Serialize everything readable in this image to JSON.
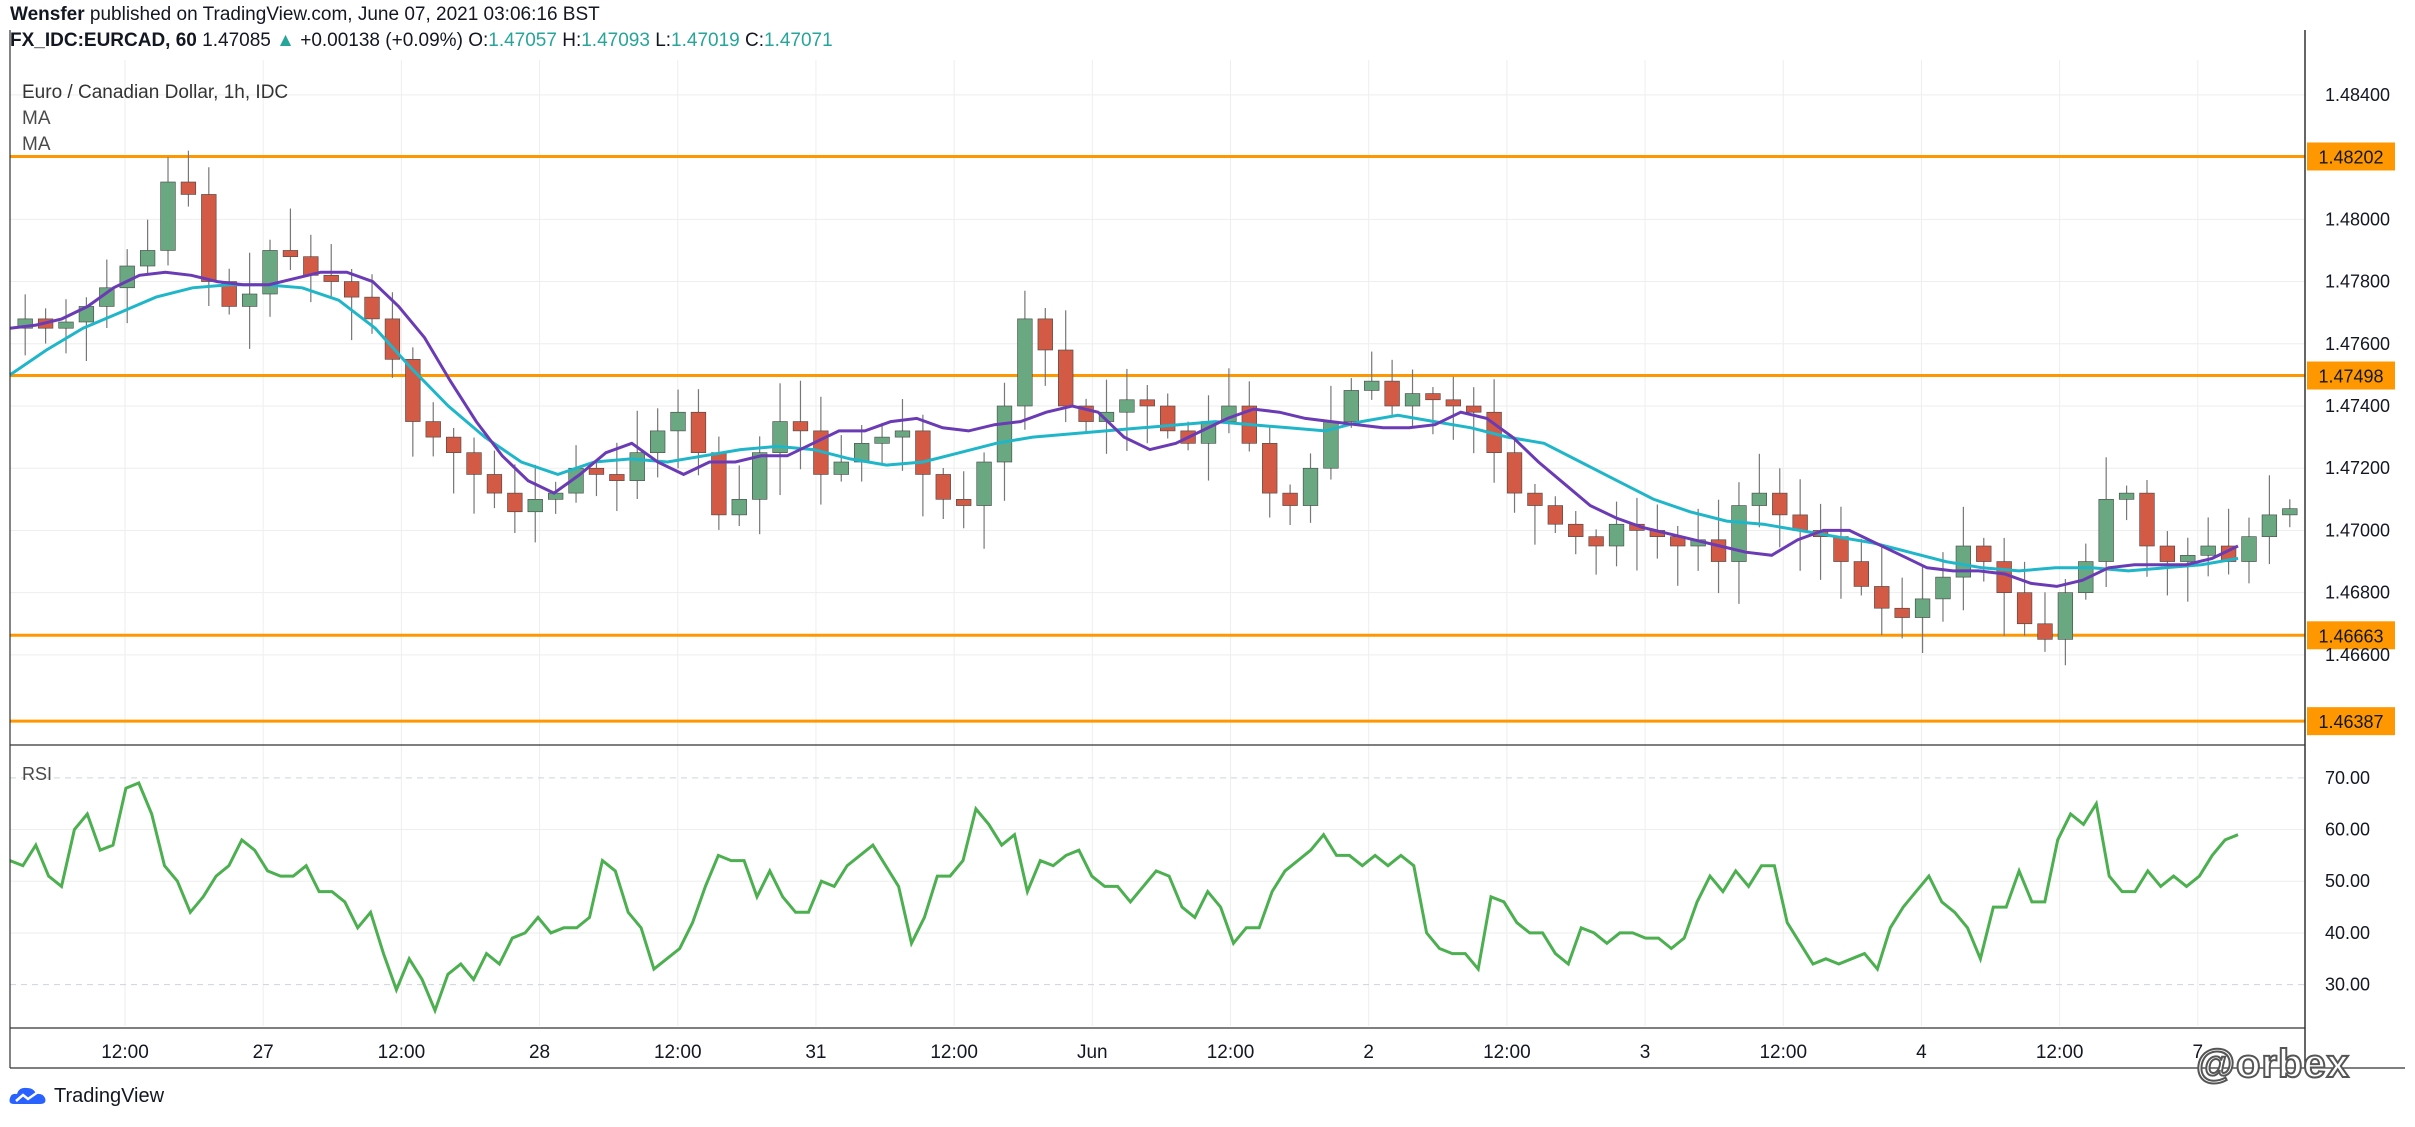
{
  "header": {
    "publisher": "Wensfer",
    "published_text": "published on TradingView.com, June 07, 2021 03:06:16 BST",
    "symbol": "FX_IDC:EURCAD, 60",
    "last": "1.47085",
    "change": "+0.00138 (+0.09%)",
    "o_label": "O:",
    "o_value": "1.47057",
    "h_label": "H:",
    "h_value": "1.47093",
    "l_label": "L:",
    "l_value": "1.47019",
    "c_label": "C:",
    "c_value": "1.47071"
  },
  "legend": {
    "title": "Euro / Canadian Dollar, 1h, IDC",
    "ma1": "MA",
    "ma2": "MA"
  },
  "rsi_label": "RSI",
  "footer": {
    "logo_text": "TradingView",
    "watermark": "@orbex"
  },
  "colors": {
    "bull": "#6aa882",
    "bear": "#d35a45",
    "ma_fast": "#6a3bb5",
    "ma_slow": "#1fb6c9",
    "level": "#ff9800",
    "rsi": "#4caf50",
    "grid": "#eeeeee"
  },
  "chart_data": [
    {
      "type": "candlestick",
      "title": "Euro / Canadian Dollar, 1h, IDC",
      "ylim": [
        1.4632,
        1.4848
      ],
      "y_ticks": [
        "1.46600",
        "1.46800",
        "1.47000",
        "1.47200",
        "1.47400",
        "1.47600",
        "1.47800",
        "1.48000",
        "1.48400"
      ],
      "x_tick_labels": [
        "12:00",
        "27",
        "12:00",
        "28",
        "12:00",
        "31",
        "12:00",
        "Jun",
        "12:00",
        "2",
        "12:00",
        "3",
        "12:00",
        "4",
        "12:00",
        "7"
      ],
      "horizontal_levels": [
        "1.48202",
        "1.47498",
        "1.46663",
        "1.46387"
      ],
      "close_path": [
        1.4768,
        1.4765,
        1.4767,
        1.4772,
        1.4778,
        1.4785,
        1.479,
        1.4812,
        1.4808,
        1.478,
        1.4772,
        1.4776,
        1.479,
        1.4788,
        1.4782,
        1.478,
        1.4775,
        1.4768,
        1.4755,
        1.4735,
        1.473,
        1.4725,
        1.4718,
        1.4712,
        1.4706,
        1.471,
        1.4712,
        1.472,
        1.4718,
        1.4716,
        1.4725,
        1.4732,
        1.4738,
        1.4725,
        1.4705,
        1.471,
        1.4725,
        1.4735,
        1.4732,
        1.4718,
        1.4722,
        1.4728,
        1.473,
        1.4732,
        1.4718,
        1.471,
        1.4708,
        1.4722,
        1.474,
        1.4768,
        1.4758,
        1.474,
        1.4735,
        1.4738,
        1.4742,
        1.474,
        1.4732,
        1.4728,
        1.4735,
        1.474,
        1.4728,
        1.4712,
        1.4708,
        1.472,
        1.4735,
        1.4745,
        1.4748,
        1.474,
        1.4744,
        1.4742,
        1.474,
        1.4738,
        1.4725,
        1.4712,
        1.4708,
        1.4702,
        1.4698,
        1.4695,
        1.4702,
        1.47,
        1.4698,
        1.4695,
        1.4697,
        1.469,
        1.4708,
        1.4712,
        1.4705,
        1.47,
        1.4698,
        1.469,
        1.4682,
        1.4675,
        1.4672,
        1.4678,
        1.4685,
        1.4695,
        1.469,
        1.468,
        1.467,
        1.4665,
        1.468,
        1.469,
        1.471,
        1.4712,
        1.4695,
        1.469,
        1.4692,
        1.4695,
        1.469,
        1.4698,
        1.4705,
        1.4707
      ],
      "ma_fast_path": [
        1.4765,
        1.4766,
        1.4768,
        1.4772,
        1.4778,
        1.4782,
        1.4783,
        1.4782,
        1.478,
        1.4779,
        1.4779,
        1.4781,
        1.4783,
        1.4783,
        1.478,
        1.4772,
        1.4762,
        1.4748,
        1.4735,
        1.4724,
        1.4716,
        1.4712,
        1.4718,
        1.4725,
        1.4728,
        1.4722,
        1.4718,
        1.4722,
        1.4722,
        1.4724,
        1.4724,
        1.4728,
        1.4732,
        1.4732,
        1.4735,
        1.4736,
        1.4733,
        1.4732,
        1.4734,
        1.4735,
        1.4738,
        1.474,
        1.4738,
        1.473,
        1.4726,
        1.4728,
        1.4732,
        1.4736,
        1.4739,
        1.4738,
        1.4736,
        1.4735,
        1.4734,
        1.4733,
        1.4733,
        1.4734,
        1.4738,
        1.4736,
        1.473,
        1.4722,
        1.4715,
        1.4708,
        1.4704,
        1.4701,
        1.4699,
        1.4697,
        1.4695,
        1.4693,
        1.4692,
        1.4697,
        1.47,
        1.47,
        1.4696,
        1.4692,
        1.4688,
        1.4687,
        1.4687,
        1.4686,
        1.4683,
        1.4682,
        1.4684,
        1.4688,
        1.4689,
        1.4689,
        1.4689,
        1.4691,
        1.4695
      ],
      "ma_slow_path": [
        1.475,
        1.4758,
        1.4765,
        1.477,
        1.4775,
        1.4778,
        1.4779,
        1.4779,
        1.4778,
        1.4774,
        1.4765,
        1.4752,
        1.474,
        1.473,
        1.4722,
        1.4718,
        1.4722,
        1.4723,
        1.4722,
        1.4724,
        1.4726,
        1.4727,
        1.4726,
        1.4723,
        1.4721,
        1.4722,
        1.4725,
        1.4728,
        1.473,
        1.4731,
        1.4732,
        1.4733,
        1.4734,
        1.4735,
        1.4734,
        1.4733,
        1.4732,
        1.4735,
        1.4737,
        1.4735,
        1.4733,
        1.473,
        1.4728,
        1.4722,
        1.4716,
        1.471,
        1.4706,
        1.4703,
        1.4702,
        1.47,
        1.4698,
        1.4696,
        1.4693,
        1.469,
        1.4688,
        1.4687,
        1.4688,
        1.4688,
        1.4687,
        1.4688,
        1.4689,
        1.4691
      ],
      "series": [
        {
          "name": "MA"
        },
        {
          "name": "MA"
        }
      ]
    },
    {
      "type": "line",
      "title": "RSI",
      "ylim": [
        22,
        75
      ],
      "y_ticks": [
        "30.00",
        "40.00",
        "50.00",
        "60.00",
        "70.00"
      ],
      "values": [
        54,
        53,
        57,
        51,
        49,
        60,
        63,
        56,
        57,
        68,
        69,
        63,
        53,
        50,
        44,
        47,
        51,
        53,
        58,
        56,
        52,
        51,
        51,
        53,
        48,
        48,
        46,
        41,
        44,
        36,
        29,
        35,
        31,
        25,
        32,
        34,
        31,
        36,
        34,
        39,
        40,
        43,
        40,
        41,
        41,
        43,
        54,
        52,
        44,
        41,
        33,
        35,
        37,
        42,
        49,
        55,
        54,
        54,
        47,
        52,
        47,
        44,
        44,
        50,
        49,
        53,
        55,
        57,
        53,
        49,
        38,
        43,
        51,
        51,
        54,
        64,
        61,
        57,
        59,
        48,
        54,
        53,
        55,
        56,
        51,
        49,
        49,
        46,
        49,
        52,
        51,
        45,
        43,
        48,
        45,
        38,
        41,
        41,
        48,
        52,
        54,
        56,
        59,
        55,
        55,
        53,
        55,
        53,
        55,
        53,
        40,
        37,
        36,
        36,
        33,
        47,
        46,
        42,
        40,
        40,
        36,
        34,
        41,
        40,
        38,
        40,
        40,
        39,
        39,
        37,
        39,
        46,
        51,
        48,
        52,
        49,
        53,
        53,
        42,
        38,
        34,
        35,
        34,
        35,
        36,
        33,
        41,
        45,
        48,
        51,
        46,
        44,
        41,
        35,
        45,
        45,
        52,
        46,
        46,
        58,
        63,
        61,
        65,
        51,
        48,
        48,
        52,
        49,
        51,
        49,
        51,
        55,
        58,
        59
      ]
    }
  ]
}
